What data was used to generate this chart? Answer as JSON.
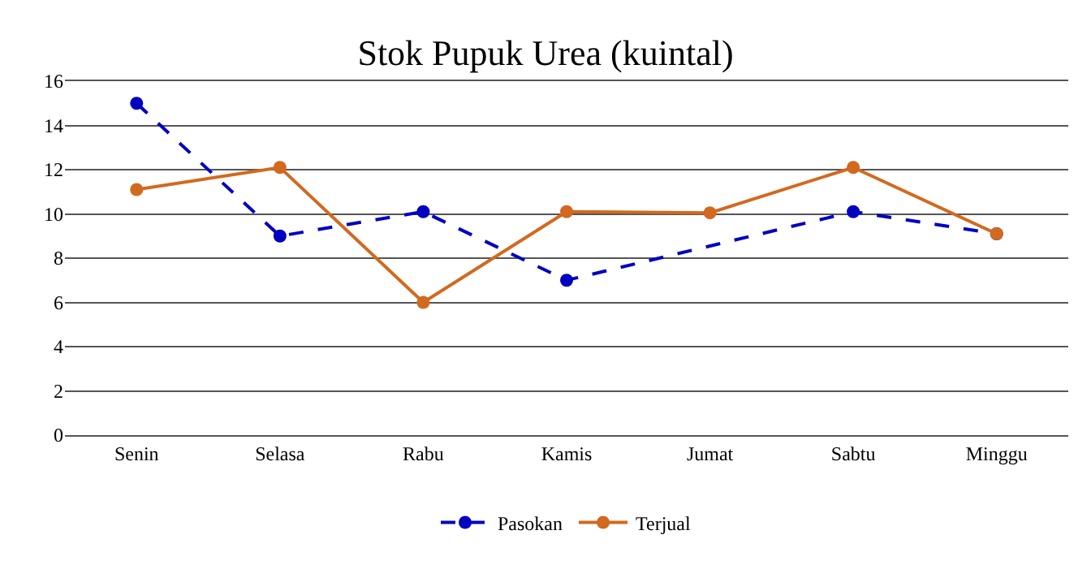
{
  "chart_data": {
    "type": "line",
    "title": "Stok Pupuk Urea (kuintal)",
    "categories": [
      "Senin",
      "Selasa",
      "Rabu",
      "Kamis",
      "Jumat",
      "Sabtu",
      "Minggu"
    ],
    "series": [
      {
        "name": "Pasokan",
        "color": "#0000c0",
        "line_style": "dashed",
        "x": [
          "Senin",
          "Selasa",
          "Rabu",
          "Kamis",
          "Sabtu",
          "Minggu"
        ],
        "values": [
          15,
          9,
          10.1,
          7,
          10.1,
          9.1
        ]
      },
      {
        "name": "Terjual",
        "color": "#d2691e",
        "line_style": "solid",
        "values": [
          11.1,
          12.1,
          6,
          10.1,
          10.05,
          12.1,
          9.1
        ]
      }
    ],
    "ylim": [
      0,
      16
    ],
    "yticks": [
      0,
      2,
      4,
      6,
      8,
      10,
      12,
      14,
      16
    ],
    "grid": "y",
    "legend": "bottom",
    "marker": "circle"
  }
}
